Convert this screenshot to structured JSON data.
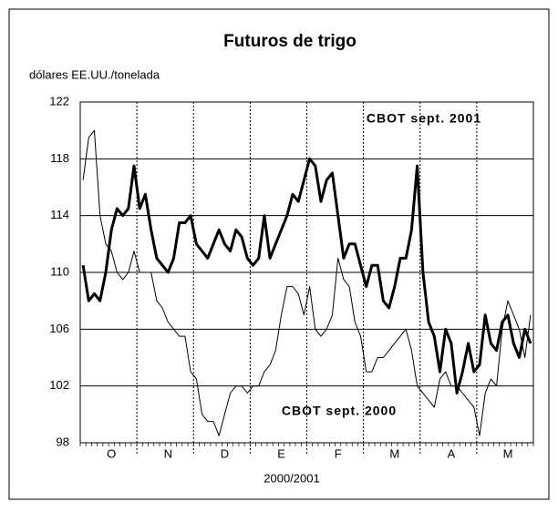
{
  "chart_data": {
    "type": "line",
    "title": "Futuros de trigo",
    "y_label": "dólares EE.UU./tonelada",
    "x_label": "2000/2001",
    "categories": [
      null,
      null,
      null,
      null,
      null,
      "O",
      null,
      null,
      null,
      null,
      null,
      null,
      null,
      null,
      null,
      "N",
      null,
      null,
      null,
      null,
      null,
      null,
      null,
      null,
      null,
      "D",
      null,
      null,
      null,
      null,
      null,
      null,
      null,
      null,
      null,
      "E",
      null,
      null,
      null,
      null,
      null,
      null,
      null,
      null,
      null,
      "F",
      null,
      null,
      null,
      null,
      null,
      null,
      null,
      null,
      null,
      "M",
      null,
      null,
      null,
      null,
      null,
      null,
      null,
      null,
      null,
      "A",
      null,
      null,
      null,
      null,
      null,
      null,
      null,
      null,
      null,
      "M",
      null,
      null,
      null,
      null
    ],
    "series": [
      {
        "name": "CBOT sept. 2001",
        "color": "#000000",
        "width": 3,
        "values": [
          110.5,
          108,
          108.5,
          108,
          110,
          113,
          114.5,
          114,
          114.5,
          117.5,
          114.5,
          115.5,
          113,
          111,
          110.5,
          110,
          111,
          113.5,
          113.5,
          114,
          112,
          111.5,
          111,
          112,
          113,
          112,
          111.5,
          113,
          112.5,
          111,
          110.5,
          111,
          114,
          111,
          112,
          113,
          114,
          115.5,
          115,
          116.5,
          118,
          117.5,
          115,
          116.5,
          117,
          114,
          111,
          112,
          112,
          110.5,
          109,
          110.5,
          110.5,
          108,
          107.5,
          109,
          111,
          111,
          113,
          117.5,
          110,
          106.5,
          105.5,
          103,
          106,
          105,
          101.5,
          103,
          105,
          103,
          103.5,
          107,
          105,
          104.5,
          106.5,
          107,
          105,
          104,
          106,
          105
        ]
      },
      {
        "name": "CBOT sept. 2000",
        "color": "#000000",
        "width": 1,
        "values": [
          116.5,
          119.5,
          120,
          114,
          112,
          111.5,
          110,
          109.5,
          110,
          111.5,
          110,
          110,
          110,
          108,
          107.5,
          106.5,
          106,
          105.5,
          105.5,
          103,
          102.5,
          100,
          99.5,
          99.5,
          98.5,
          100,
          101.5,
          102,
          102,
          101.5,
          102,
          102,
          103,
          103.5,
          104.5,
          107,
          109,
          109,
          108.5,
          107,
          109,
          106,
          105.5,
          106,
          107,
          111,
          109.5,
          109,
          106.5,
          105.5,
          103,
          103,
          104,
          104,
          104.5,
          105,
          105.5,
          106,
          104.5,
          102,
          101.5,
          101,
          100.5,
          102.5,
          103,
          102,
          102,
          101.5,
          101,
          100.5,
          98.5,
          101.5,
          102.5,
          102,
          106,
          108,
          107,
          106,
          104,
          107
        ]
      }
    ],
    "ylim": [
      98,
      122
    ],
    "yticks": [
      98,
      102,
      106,
      110,
      114,
      118,
      122
    ],
    "grid": true
  }
}
